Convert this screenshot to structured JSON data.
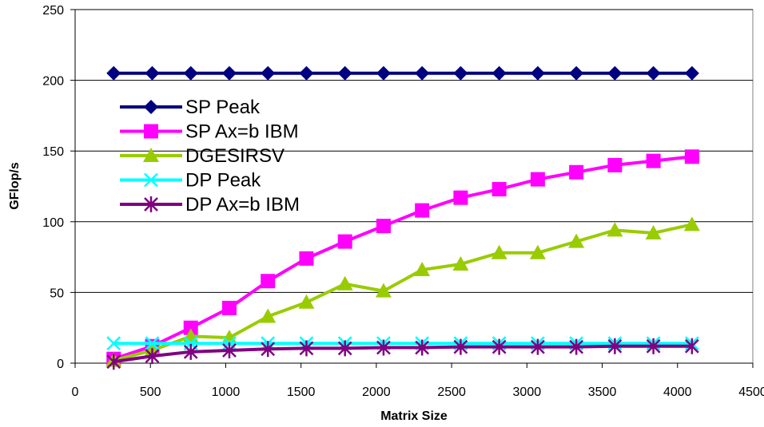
{
  "chart_data": {
    "type": "line",
    "title": "",
    "xlabel": "Matrix Size",
    "ylabel": "GFlop/s",
    "xlim": [
      0,
      4500
    ],
    "ylim": [
      0,
      250
    ],
    "x_ticks": [
      0,
      500,
      1000,
      1500,
      2000,
      2500,
      3000,
      3500,
      4000,
      4500
    ],
    "y_ticks": [
      0,
      50,
      100,
      150,
      200,
      250
    ],
    "grid": "horizontal",
    "legend_position": "upper-left inside plot",
    "x": [
      256,
      512,
      768,
      1024,
      1280,
      1536,
      1792,
      2048,
      2304,
      2560,
      2816,
      3072,
      3328,
      3584,
      3840,
      4096
    ],
    "series": [
      {
        "name": "SP Peak",
        "color": "#000080",
        "marker": "diamond",
        "values": [
          205,
          205,
          205,
          205,
          205,
          205,
          205,
          205,
          205,
          205,
          205,
          205,
          205,
          205,
          205,
          205
        ]
      },
      {
        "name": "SP Ax=b IBM",
        "color": "#ff00ff",
        "marker": "square",
        "values": [
          3,
          12,
          25,
          39,
          58,
          74,
          86,
          97,
          108,
          117,
          123,
          130,
          135,
          140,
          143,
          146
        ]
      },
      {
        "name": "DGESIRSV",
        "color": "#99cc00",
        "marker": "triangle",
        "values": [
          2,
          9,
          19,
          18,
          33,
          43,
          56,
          51,
          66,
          70,
          78,
          78,
          86,
          94,
          92,
          98
        ]
      },
      {
        "name": "DP Peak",
        "color": "#00ffff",
        "marker": "x",
        "values": [
          14,
          14,
          14,
          14,
          14,
          14,
          14,
          14,
          14,
          14,
          14,
          14,
          14,
          14,
          14,
          14
        ]
      },
      {
        "name": "DP Ax=b IBM",
        "color": "#800080",
        "marker": "star",
        "values": [
          1,
          5,
          8,
          9,
          10,
          10.5,
          10.5,
          11,
          11,
          11.5,
          11.5,
          11.5,
          11.5,
          12,
          12,
          12
        ]
      }
    ]
  }
}
